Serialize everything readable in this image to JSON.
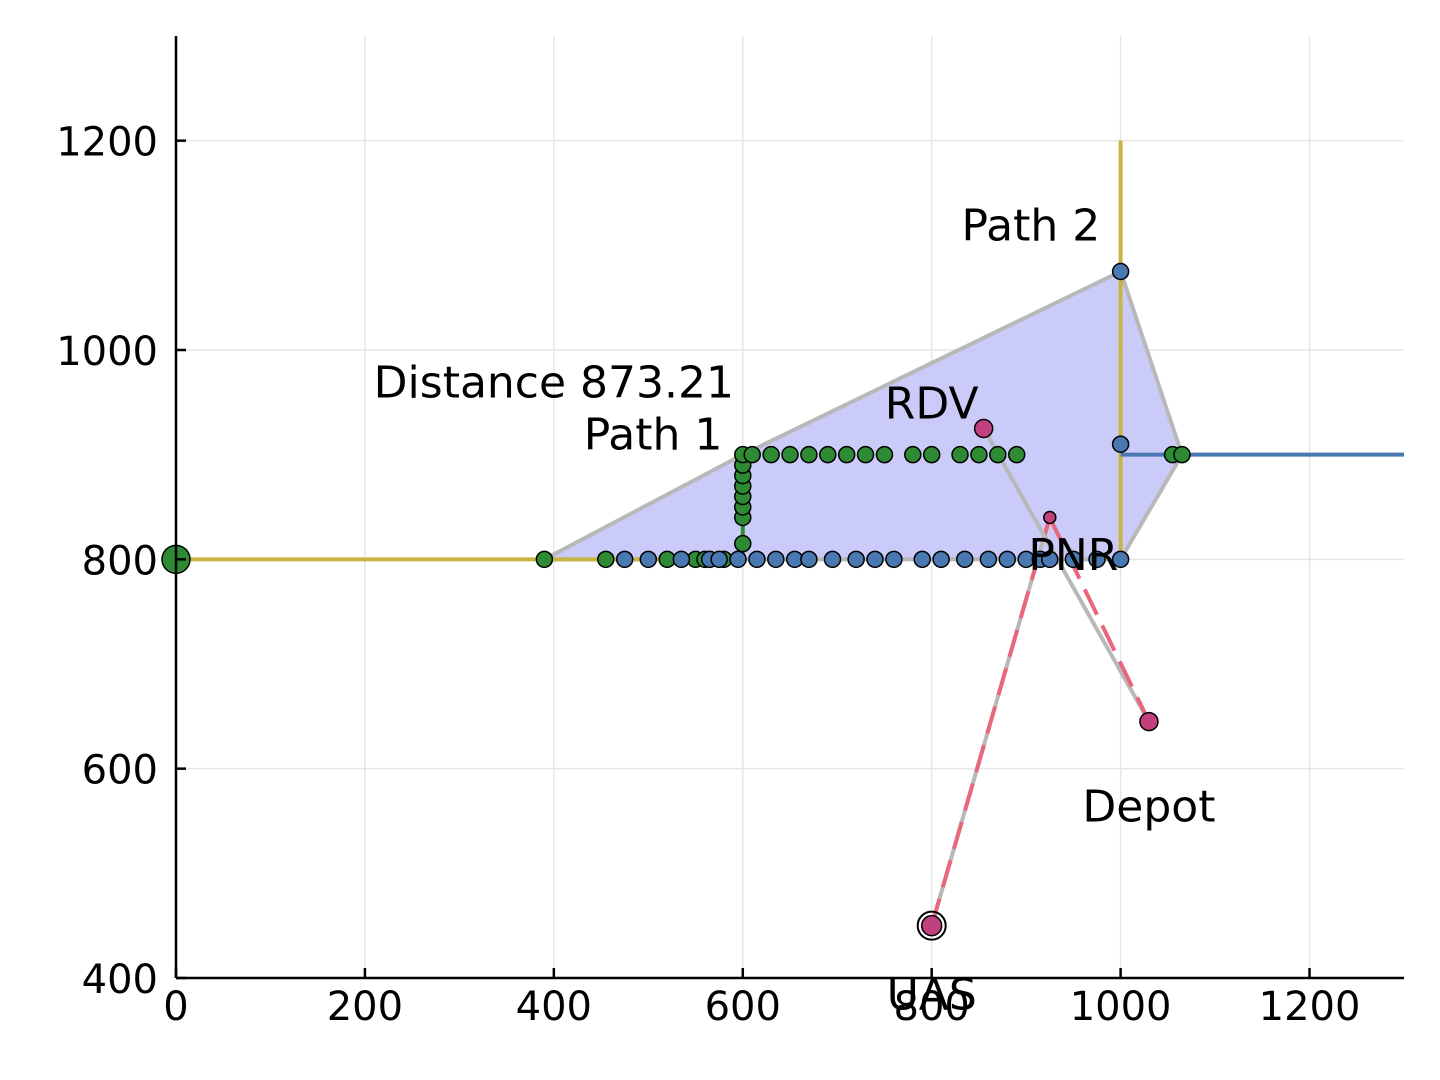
{
  "chart_data": {
    "type": "scatter",
    "title": "",
    "xlabel": "",
    "ylabel": "",
    "xlim": [
      0,
      1300
    ],
    "ylim": [
      400,
      1300
    ],
    "grid": true,
    "legend": "none",
    "x_ticks": [
      0,
      200,
      400,
      600,
      800,
      1000,
      1200
    ],
    "y_ticks": [
      400,
      600,
      800,
      1000,
      1200
    ],
    "colors": {
      "yellow": "#c8b440",
      "blue": "#4a78b0",
      "green": "#2e8b33",
      "magenta": "#c1407e",
      "red": "#e8677a",
      "gray": "#b8b8b8",
      "fill": "#c8c8fa"
    },
    "region": {
      "points": [
        [
          390,
          800
        ],
        [
          600,
          900
        ],
        [
          1000,
          1075
        ],
        [
          1065,
          900
        ],
        [
          1000,
          800
        ]
      ]
    },
    "lines": [
      {
        "id": "path1-line",
        "color": "yellow",
        "width": 4,
        "points": [
          [
            0,
            800
          ],
          [
            600,
            800
          ]
        ]
      },
      {
        "id": "path1-vertical",
        "color": "green",
        "width": 4,
        "points": [
          [
            600,
            800
          ],
          [
            600,
            900
          ]
        ]
      },
      {
        "id": "path2-line",
        "color": "yellow",
        "width": 4,
        "points": [
          [
            1000,
            800
          ],
          [
            1000,
            1200
          ]
        ]
      },
      {
        "id": "blue-line",
        "color": "blue",
        "width": 4,
        "points": [
          [
            1000,
            900
          ],
          [
            1300,
            900
          ]
        ]
      },
      {
        "id": "uas-pnr-solid",
        "color": "gray",
        "width": 4,
        "dash": "",
        "points": [
          [
            800,
            450
          ],
          [
            925,
            840
          ]
        ]
      },
      {
        "id": "uas-pnr-dash",
        "color": "red",
        "width": 4,
        "dash": "28 12",
        "points": [
          [
            800,
            450
          ],
          [
            925,
            840
          ]
        ]
      },
      {
        "id": "rdv-depot-solid",
        "color": "gray",
        "width": 4,
        "dash": "",
        "points": [
          [
            855,
            925
          ],
          [
            1030,
            645
          ]
        ]
      },
      {
        "id": "pnr-depot-dash",
        "color": "red",
        "width": 4,
        "dash": "28 12",
        "points": [
          [
            925,
            840
          ],
          [
            1030,
            645
          ]
        ]
      }
    ],
    "series": [
      {
        "color": "green",
        "radius": 8,
        "points": [
          [
            390,
            800
          ],
          [
            455,
            800
          ],
          [
            520,
            800
          ],
          [
            550,
            800
          ],
          [
            560,
            800
          ],
          [
            580,
            800
          ],
          [
            600,
            815
          ],
          [
            600,
            840
          ],
          [
            600,
            850
          ],
          [
            600,
            860
          ],
          [
            600,
            870
          ],
          [
            600,
            880
          ],
          [
            600,
            890
          ],
          [
            600,
            900
          ],
          [
            610,
            900
          ],
          [
            630,
            900
          ],
          [
            650,
            900
          ],
          [
            670,
            900
          ],
          [
            690,
            900
          ],
          [
            710,
            900
          ],
          [
            730,
            900
          ],
          [
            750,
            900
          ],
          [
            780,
            900
          ],
          [
            800,
            900
          ],
          [
            830,
            900
          ],
          [
            850,
            900
          ],
          [
            870,
            900
          ],
          [
            890,
            900
          ],
          [
            1055,
            900
          ],
          [
            1065,
            900
          ]
        ]
      },
      {
        "color": "blue",
        "radius": 8,
        "points": [
          [
            475,
            800
          ],
          [
            500,
            800
          ],
          [
            535,
            800
          ],
          [
            565,
            800
          ],
          [
            575,
            800
          ],
          [
            595,
            800
          ],
          [
            615,
            800
          ],
          [
            635,
            800
          ],
          [
            655,
            800
          ],
          [
            670,
            800
          ],
          [
            695,
            800
          ],
          [
            720,
            800
          ],
          [
            740,
            800
          ],
          [
            760,
            800
          ],
          [
            790,
            800
          ],
          [
            810,
            800
          ],
          [
            835,
            800
          ],
          [
            860,
            800
          ],
          [
            880,
            800
          ],
          [
            900,
            800
          ],
          [
            915,
            800
          ],
          [
            925,
            800
          ],
          [
            950,
            800
          ],
          [
            975,
            800
          ],
          [
            1000,
            800
          ],
          [
            1000,
            910
          ],
          [
            1000,
            1075
          ]
        ]
      }
    ],
    "big_points": [
      {
        "id": "origin-point",
        "color": "green",
        "x": 0,
        "y": 800,
        "radius": 14
      }
    ],
    "key_points": [
      {
        "id": "rdv-point",
        "color": "magenta",
        "x": 855,
        "y": 925,
        "radius": 9
      },
      {
        "id": "pnr-point",
        "color": "magenta",
        "x": 925,
        "y": 840,
        "radius": 6
      },
      {
        "id": "depot-point",
        "color": "magenta",
        "x": 1030,
        "y": 645,
        "radius": 9
      },
      {
        "id": "uas-point",
        "color": "magenta",
        "x": 800,
        "y": 450,
        "radius": 10,
        "ring": true
      }
    ],
    "annotations": [
      {
        "id": "annotation-path2",
        "text": "Path 2",
        "x": 905,
        "y": 1120
      },
      {
        "id": "annotation-distance",
        "text": "Distance 873.21",
        "x": 400,
        "y": 970
      },
      {
        "id": "annotation-path1",
        "text": "Path 1",
        "x": 505,
        "y": 920
      },
      {
        "id": "annotation-rdv",
        "text": "RDV",
        "x": 800,
        "y": 950
      },
      {
        "id": "annotation-pnr",
        "text": "PNR",
        "x": 950,
        "y": 805
      },
      {
        "id": "annotation-depot",
        "text": "Depot",
        "x": 1030,
        "y": 565
      },
      {
        "id": "annotation-uas",
        "text": "UAS",
        "x": 800,
        "y": 385
      }
    ]
  }
}
